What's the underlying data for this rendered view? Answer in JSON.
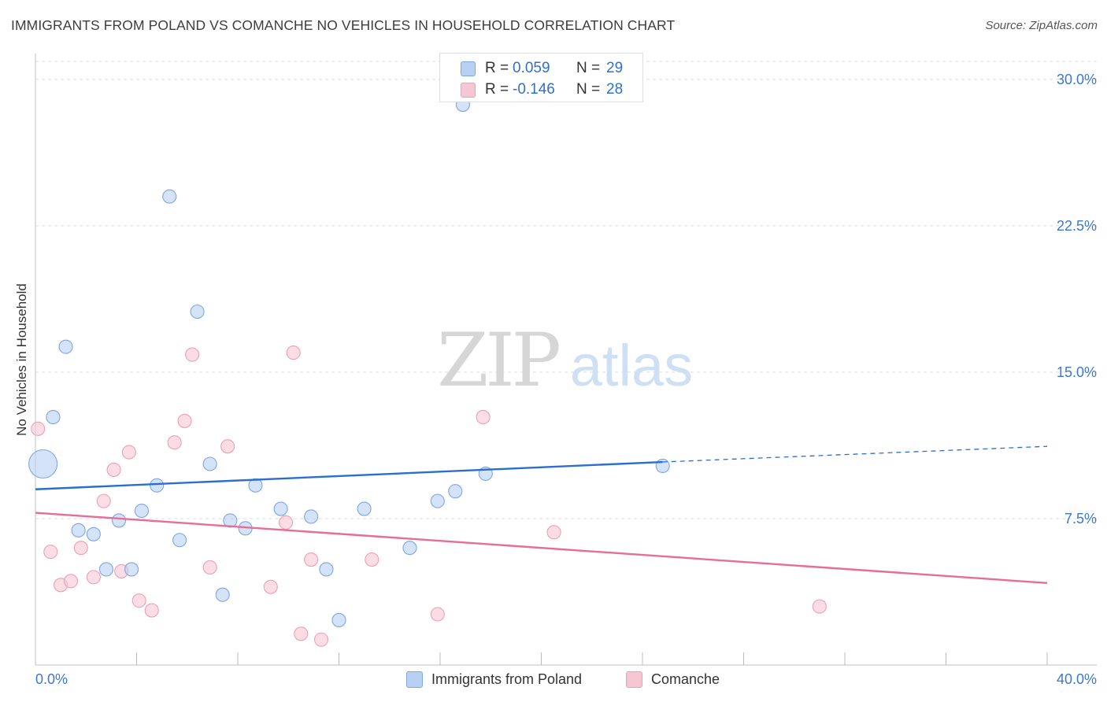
{
  "header": {
    "title": "IMMIGRANTS FROM POLAND VS COMANCHE NO VEHICLES IN HOUSEHOLD CORRELATION CHART",
    "source": "Source: ZipAtlas.com"
  },
  "watermark": {
    "zip": "ZIP",
    "atlas": "atlas"
  },
  "legend_top": {
    "rows": [
      {
        "r_label": "R =",
        "r_value": "0.059",
        "n_label": "N =",
        "n_value": "29"
      },
      {
        "r_label": "R =",
        "r_value": "-0.146",
        "n_label": "N =",
        "n_value": "28"
      }
    ]
  },
  "legend_bottom": {
    "items": [
      {
        "label": "Immigrants from Poland"
      },
      {
        "label": "Comanche"
      }
    ]
  },
  "colors": {
    "blue_fill": "#b8d1f3",
    "blue_stroke": "#7fa6de",
    "blue_line": "#2a6fd0",
    "pink_fill": "#f7c6d4",
    "pink_stroke": "#eba0b7",
    "pink_line": "#e76d97",
    "tick_text": "#3c78d0",
    "grid": "#dddddd"
  },
  "chart_data": {
    "type": "scatter",
    "title": "IMMIGRANTS FROM POLAND VS COMANCHE NO VEHICLES IN HOUSEHOLD CORRELATION CHART",
    "xlabel": "",
    "ylabel": "No Vehicles in Household",
    "xlim": [
      0,
      40
    ],
    "ylim": [
      0,
      31
    ],
    "x_tick_labels": [
      "0.0%",
      "40.0%"
    ],
    "y_ticks": [
      7.5,
      15.0,
      22.5,
      30.0
    ],
    "y_tick_labels": [
      "7.5%",
      "15.0%",
      "22.5%",
      "30.0%"
    ],
    "grid": true,
    "legend_position": "top-center",
    "series": [
      {
        "name": "Immigrants from Poland",
        "color": "#b8d1f3",
        "points": [
          {
            "x": 0.3,
            "y": 10.3,
            "big": true
          },
          {
            "x": 0.7,
            "y": 12.7
          },
          {
            "x": 1.2,
            "y": 16.3
          },
          {
            "x": 1.7,
            "y": 6.9
          },
          {
            "x": 2.3,
            "y": 6.7
          },
          {
            "x": 2.8,
            "y": 4.9
          },
          {
            "x": 3.3,
            "y": 7.4
          },
          {
            "x": 3.8,
            "y": 4.9
          },
          {
            "x": 4.2,
            "y": 7.9
          },
          {
            "x": 4.8,
            "y": 9.2
          },
          {
            "x": 5.3,
            "y": 24.0
          },
          {
            "x": 5.7,
            "y": 6.4
          },
          {
            "x": 6.4,
            "y": 18.1
          },
          {
            "x": 6.9,
            "y": 10.3
          },
          {
            "x": 7.4,
            "y": 3.6
          },
          {
            "x": 7.7,
            "y": 7.4
          },
          {
            "x": 8.3,
            "y": 7.0
          },
          {
            "x": 8.7,
            "y": 9.2
          },
          {
            "x": 9.7,
            "y": 8.0
          },
          {
            "x": 10.9,
            "y": 7.6
          },
          {
            "x": 11.5,
            "y": 4.9
          },
          {
            "x": 12.0,
            "y": 2.3
          },
          {
            "x": 13.0,
            "y": 8.0
          },
          {
            "x": 14.8,
            "y": 6.0
          },
          {
            "x": 15.9,
            "y": 8.4
          },
          {
            "x": 16.6,
            "y": 8.9
          },
          {
            "x": 16.9,
            "y": 28.7
          },
          {
            "x": 17.8,
            "y": 9.8
          },
          {
            "x": 24.8,
            "y": 10.2
          }
        ]
      },
      {
        "name": "Comanche",
        "color": "#f7c6d4",
        "points": [
          {
            "x": 0.1,
            "y": 12.1
          },
          {
            "x": 0.6,
            "y": 5.8
          },
          {
            "x": 1.0,
            "y": 4.1
          },
          {
            "x": 1.4,
            "y": 4.3
          },
          {
            "x": 1.8,
            "y": 6.0
          },
          {
            "x": 2.3,
            "y": 4.5
          },
          {
            "x": 2.7,
            "y": 8.4
          },
          {
            "x": 3.1,
            "y": 10.0
          },
          {
            "x": 3.4,
            "y": 4.8
          },
          {
            "x": 3.7,
            "y": 10.9
          },
          {
            "x": 4.1,
            "y": 3.3
          },
          {
            "x": 4.6,
            "y": 2.8
          },
          {
            "x": 5.5,
            "y": 11.4
          },
          {
            "x": 5.9,
            "y": 12.5
          },
          {
            "x": 6.2,
            "y": 15.9
          },
          {
            "x": 6.9,
            "y": 5.0
          },
          {
            "x": 7.6,
            "y": 11.2
          },
          {
            "x": 9.3,
            "y": 4.0
          },
          {
            "x": 9.9,
            "y": 7.3
          },
          {
            "x": 10.2,
            "y": 16.0
          },
          {
            "x": 10.5,
            "y": 1.6
          },
          {
            "x": 10.9,
            "y": 5.4
          },
          {
            "x": 11.3,
            "y": 1.3
          },
          {
            "x": 13.3,
            "y": 5.4
          },
          {
            "x": 15.9,
            "y": 2.6
          },
          {
            "x": 17.7,
            "y": 12.7
          },
          {
            "x": 20.5,
            "y": 6.8
          },
          {
            "x": 31.0,
            "y": 3.0
          }
        ]
      }
    ],
    "trend_lines": [
      {
        "series": "Immigrants from Poland",
        "x": [
          0,
          24.8
        ],
        "y": [
          9.0,
          10.4
        ],
        "dashed_extension": {
          "x": [
            24.8,
            40
          ],
          "y": [
            10.4,
            11.2
          ]
        }
      },
      {
        "series": "Comanche",
        "x": [
          0,
          40
        ],
        "y": [
          7.8,
          4.2
        ]
      }
    ]
  }
}
